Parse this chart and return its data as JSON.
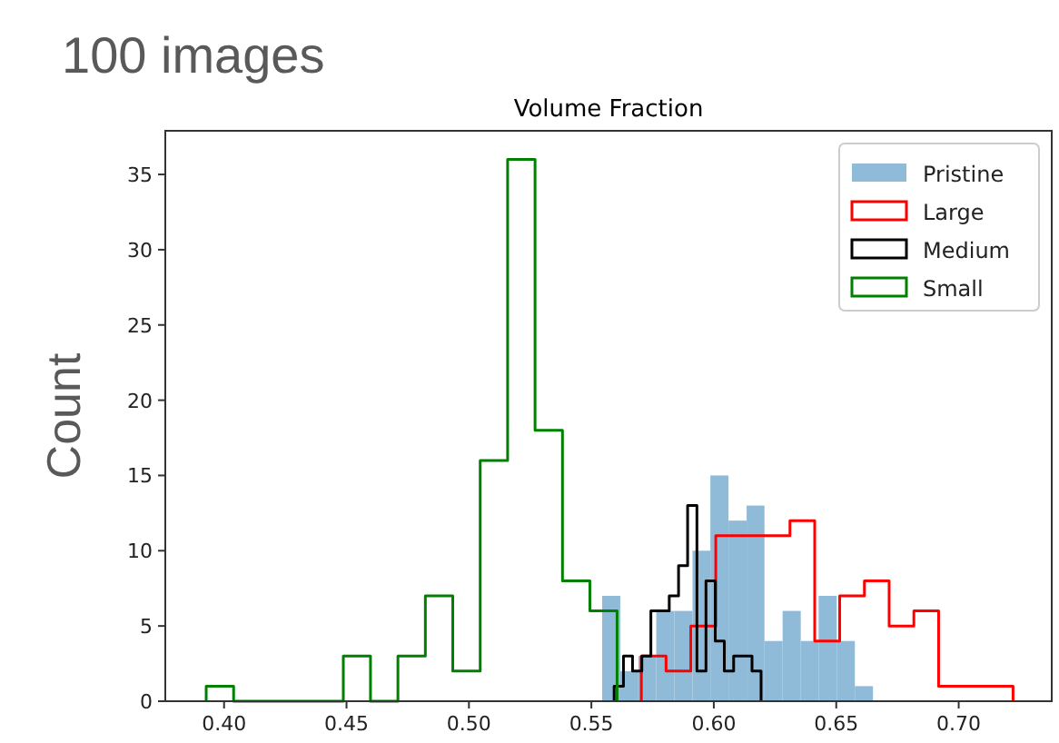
{
  "chart_data": {
    "type": "histogram",
    "title": "100 images",
    "subtitle": "Volume Fraction",
    "ylabel": "Count",
    "xlim": [
      0.376,
      0.738
    ],
    "ylim": [
      0,
      37.9
    ],
    "xticks": [
      {
        "value": 0.4,
        "label": "0.40"
      },
      {
        "value": 0.45,
        "label": "0.45"
      },
      {
        "value": 0.5,
        "label": "0.50"
      },
      {
        "value": 0.55,
        "label": "0.55"
      },
      {
        "value": 0.6,
        "label": "0.60"
      },
      {
        "value": 0.65,
        "label": "0.65"
      },
      {
        "value": 0.7,
        "label": "0.70"
      }
    ],
    "yticks": [
      0,
      5,
      10,
      15,
      20,
      25,
      30,
      35
    ],
    "legend": "top right",
    "grid": false,
    "bins": [
      0.5544,
      0.5618,
      0.5692,
      0.5765,
      0.5839,
      0.5913,
      0.5986,
      0.606,
      0.6134,
      0.6207,
      0.6281,
      0.6355,
      0.6428,
      0.6502,
      0.6576,
      0.665
    ],
    "series": [
      {
        "name": "Pristine",
        "color": "#8fbbd9",
        "values": [
          7,
          2,
          3,
          6,
          6,
          10,
          15,
          12,
          13,
          4,
          6,
          4,
          7,
          4,
          1
        ]
      },
      {
        "name": "Large",
        "type": "step",
        "color": "#ff0000",
        "x": [
          0.5704,
          0.5704,
          0.5805,
          0.5906,
          0.6008,
          0.6109,
          0.621,
          0.6311,
          0.6412,
          0.6514,
          0.6615,
          0.6716,
          0.6817,
          0.6918,
          0.702,
          0.7121,
          0.7222,
          0.7222
        ],
        "values": [
          0,
          3,
          2,
          5,
          11,
          11,
          11,
          12,
          4,
          7,
          8,
          5,
          6,
          1,
          1,
          1,
          1,
          0
        ]
      },
      {
        "name": "Medium",
        "type": "step",
        "color": "#000000",
        "x": [
          0.5593,
          0.5593,
          0.5631,
          0.5668,
          0.5706,
          0.5743,
          0.5781,
          0.5818,
          0.5856,
          0.5893,
          0.5931,
          0.5968,
          0.6006,
          0.6043,
          0.6081,
          0.6118,
          0.6156,
          0.6193,
          0.6193
        ],
        "values": [
          0,
          1,
          3,
          2,
          3,
          6,
          6,
          7,
          9,
          13,
          2,
          8,
          4,
          2,
          3,
          3,
          2,
          2,
          0
        ]
      },
      {
        "name": "Small",
        "type": "step",
        "color": "#008000",
        "x": [
          0.3927,
          0.3927,
          0.4039,
          0.4151,
          0.4263,
          0.4375,
          0.4487,
          0.4598,
          0.471,
          0.4822,
          0.4934,
          0.5046,
          0.5158,
          0.527,
          0.5382,
          0.5494,
          0.5605,
          0.5605
        ],
        "values": [
          0,
          1,
          0,
          0,
          0,
          0,
          3,
          0,
          3,
          7,
          2,
          16,
          36,
          18,
          8,
          6,
          6,
          0
        ]
      }
    ]
  }
}
